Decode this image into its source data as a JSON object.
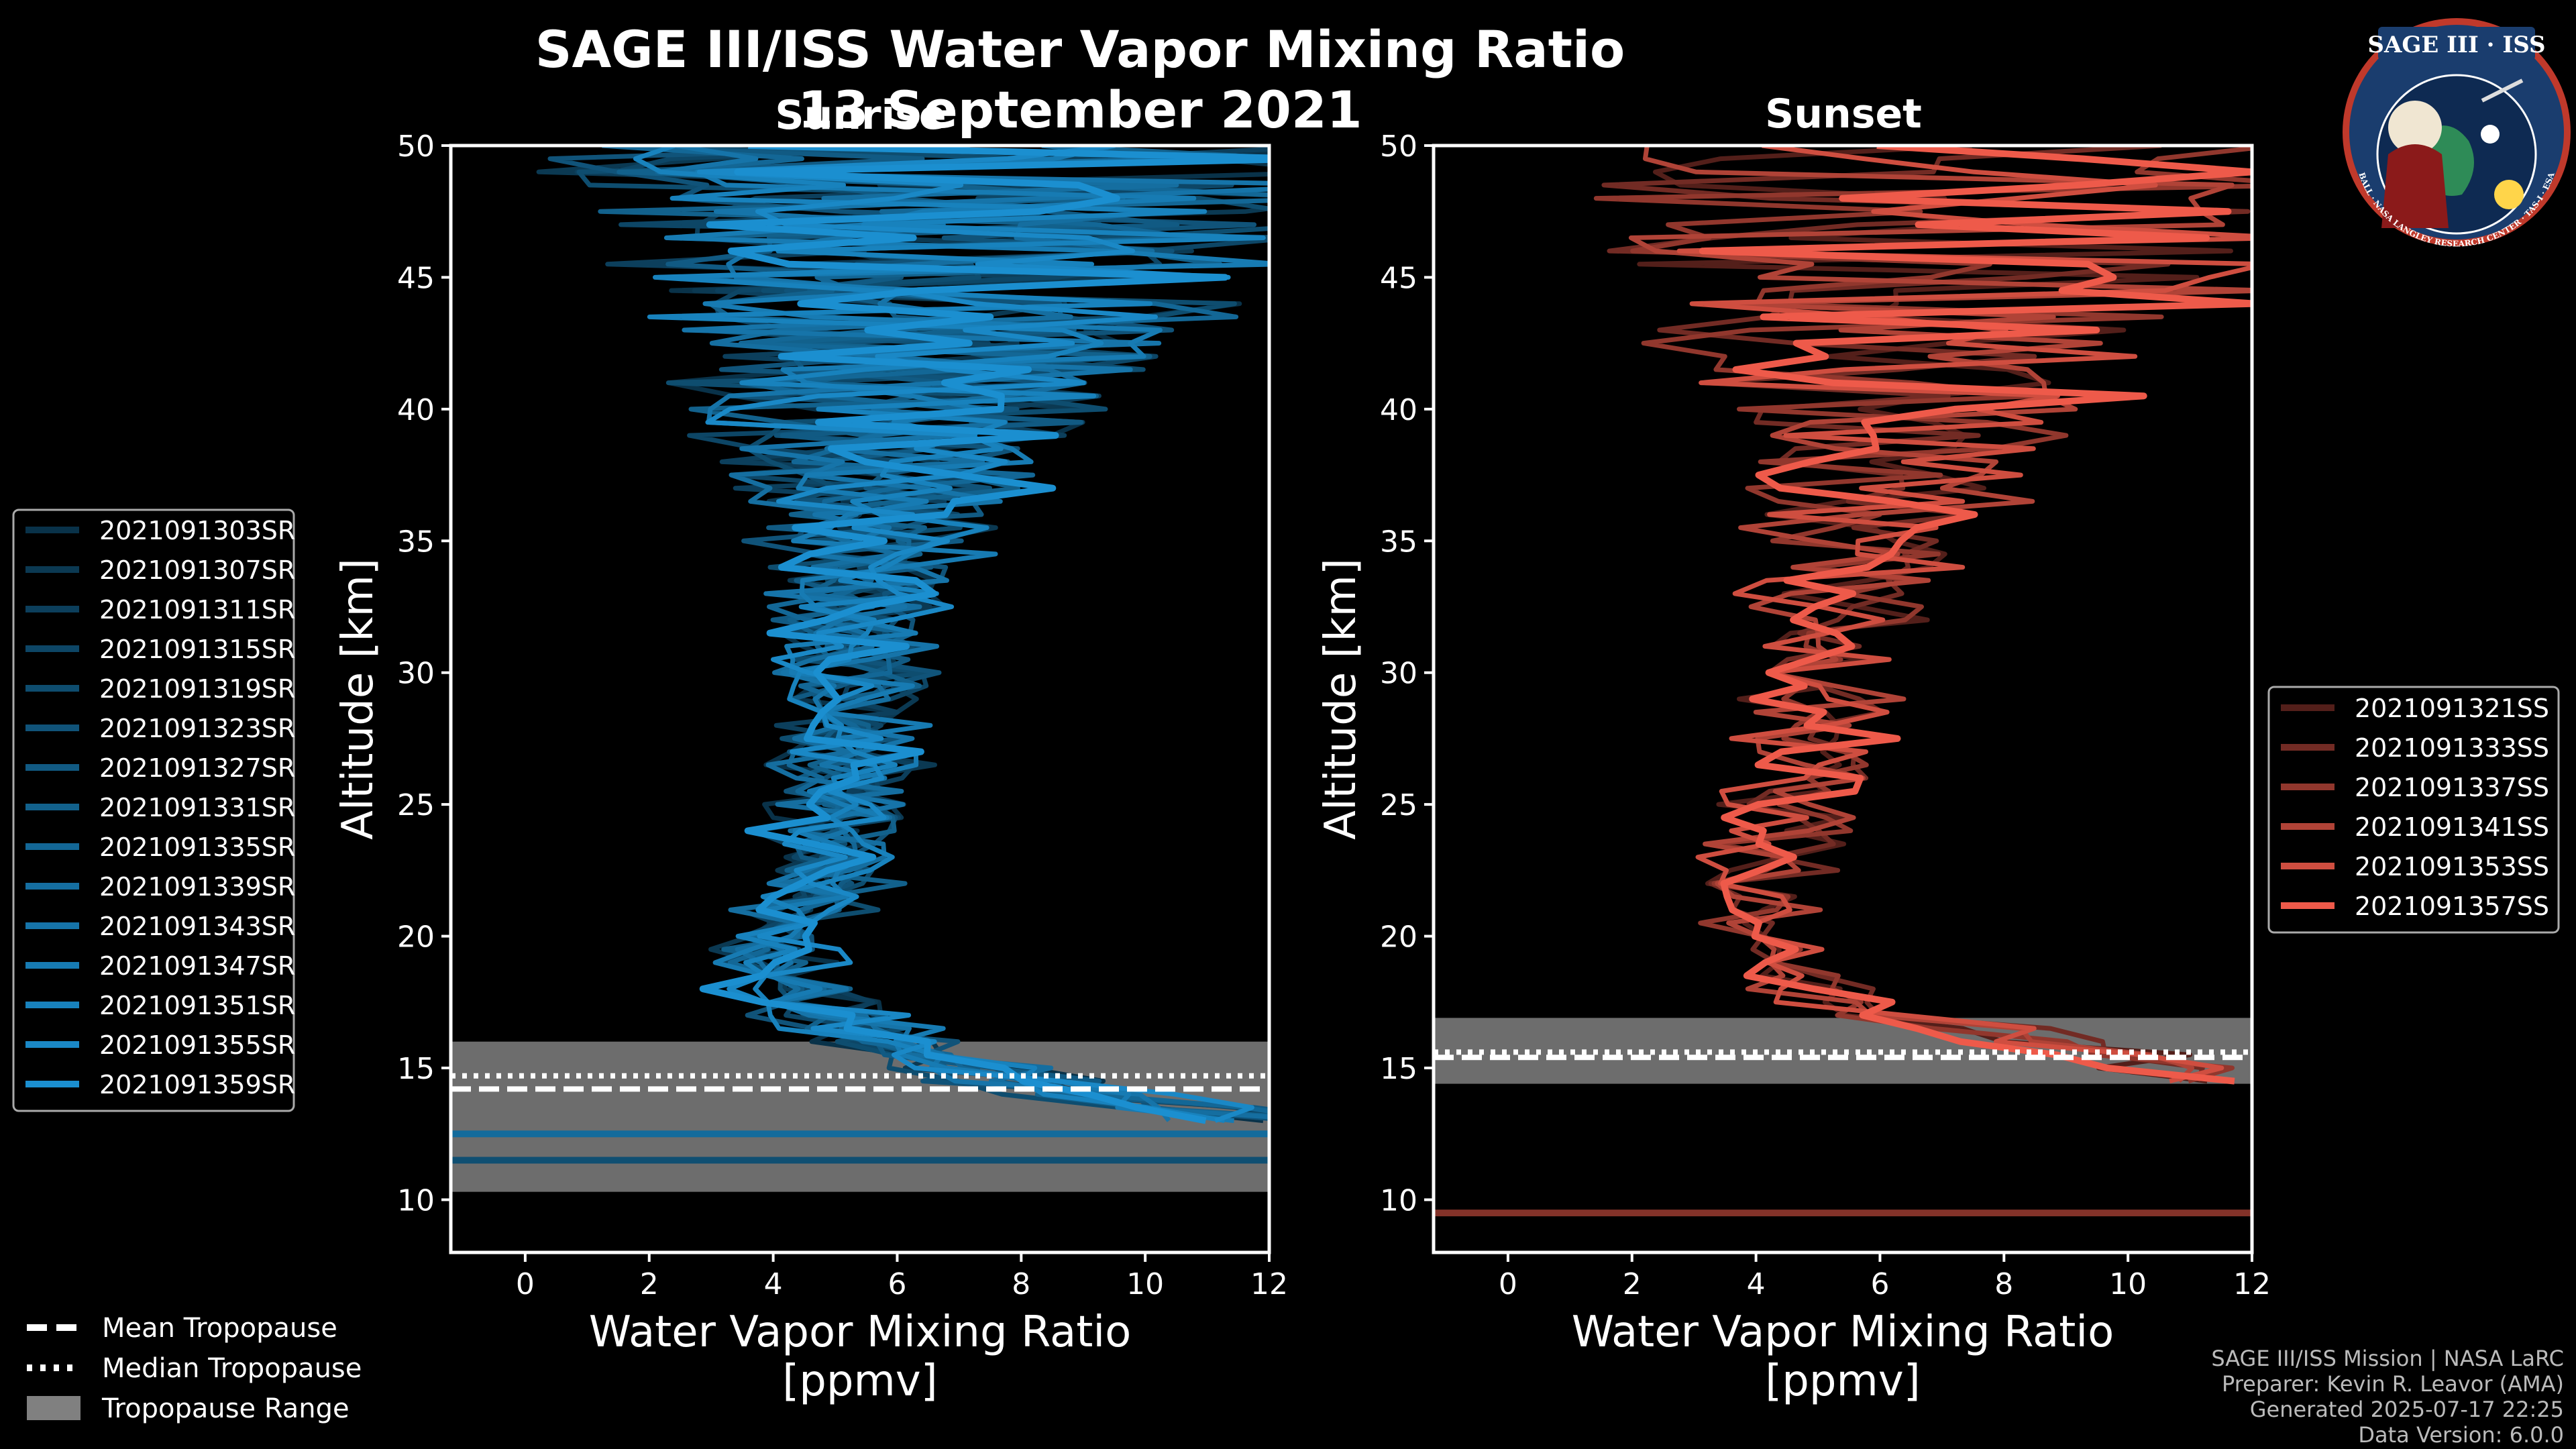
{
  "title": "SAGE III/ISS Water Vapor Mixing Ratio",
  "date": "13 September 2021",
  "sunrise_label": "Sunrise",
  "sunset_label": "Sunset",
  "footer": {
    "line1": "SAGE III/ISS Mission | NASA LaRC",
    "line2": "Preparer: Kevin R. Leavor (AMA)",
    "line3": "Generated 2025-07-17 22:25",
    "line4": "Data Version: 6.0.0"
  },
  "logo": {
    "title": "SAGE III · ISS",
    "ring": "BALL · NASA LANGLEY RESEARCH CENTER · TAS-I · ESA"
  },
  "colors": {
    "sunrise": "#1b8fd0",
    "sunset": "#ee5a4a",
    "tropopause_range": "#808080",
    "background": "#000000"
  },
  "tropopause_legend": {
    "mean": "Mean Tropopause",
    "median": "Median Tropopause",
    "range": "Tropopause Range"
  },
  "chart_data": [
    {
      "type": "line",
      "panel": "sunrise",
      "title": "Sunrise",
      "xlabel": "Water Vapor Mixing Ratio\n[ppmv]",
      "ylabel": "Altitude [km]",
      "xlim": [
        -1.2,
        12
      ],
      "ylim": [
        8,
        50
      ],
      "xticks": [
        0,
        2,
        4,
        6,
        8,
        10,
        12
      ],
      "yticks": [
        10,
        15,
        20,
        25,
        30,
        35,
        40,
        45,
        50
      ],
      "tropopause": {
        "mean": 14.2,
        "median": 14.7,
        "range": [
          10.3,
          16.0
        ]
      },
      "series_names": [
        "2021091303SR",
        "2021091307SR",
        "2021091311SR",
        "2021091315SR",
        "2021091319SR",
        "2021091323SR",
        "2021091327SR",
        "2021091331SR",
        "2021091335SR",
        "2021091339SR",
        "2021091343SR",
        "2021091347SR",
        "2021091351SR",
        "2021091355SR",
        "2021091359SR"
      ],
      "profile_mean": [
        [
          12.0,
          13
        ],
        [
          9.0,
          14
        ],
        [
          7.0,
          15
        ],
        [
          5.8,
          16
        ],
        [
          4.8,
          17
        ],
        [
          4.2,
          18
        ],
        [
          3.9,
          19
        ],
        [
          4.0,
          20
        ],
        [
          4.4,
          21
        ],
        [
          4.8,
          22
        ],
        [
          5.0,
          24
        ],
        [
          5.1,
          26
        ],
        [
          5.2,
          28
        ],
        [
          5.3,
          30
        ],
        [
          5.4,
          32
        ],
        [
          5.5,
          34
        ],
        [
          5.7,
          36
        ],
        [
          5.9,
          38
        ],
        [
          6.2,
          40
        ],
        [
          6.5,
          42
        ],
        [
          6.8,
          44
        ],
        [
          6.9,
          46
        ],
        [
          7.0,
          48
        ],
        [
          7.0,
          50
        ]
      ],
      "noise_profile": [
        [
          13,
          1.2
        ],
        [
          20,
          0.8
        ],
        [
          30,
          1.0
        ],
        [
          36,
          1.8
        ],
        [
          40,
          3.5
        ],
        [
          44,
          5.0
        ],
        [
          50,
          6.5
        ]
      ],
      "horizontal_segments_km": [
        11.5,
        12.5
      ]
    },
    {
      "type": "line",
      "panel": "sunset",
      "title": "Sunset",
      "xlabel": "Water Vapor Mixing Ratio\n[ppmv]",
      "ylabel": "Altitude [km]",
      "xlim": [
        -1.2,
        12
      ],
      "ylim": [
        8,
        50
      ],
      "xticks": [
        0,
        2,
        4,
        6,
        8,
        10,
        12
      ],
      "yticks": [
        10,
        15,
        20,
        25,
        30,
        35,
        40,
        45,
        50
      ],
      "tropopause": {
        "mean": 15.4,
        "median": 15.6,
        "range": [
          14.4,
          16.9
        ]
      },
      "series_names": [
        "2021091321SS",
        "2021091333SS",
        "2021091337SS",
        "2021091341SS",
        "2021091353SS",
        "2021091357SS"
      ],
      "profile_mean": [
        [
          12.0,
          14.5
        ],
        [
          10.0,
          15.3
        ],
        [
          8.0,
          16.3
        ],
        [
          6.0,
          17.2
        ],
        [
          4.8,
          18
        ],
        [
          4.2,
          19
        ],
        [
          3.9,
          20
        ],
        [
          4.0,
          22
        ],
        [
          4.4,
          24
        ],
        [
          4.8,
          26
        ],
        [
          5.0,
          28
        ],
        [
          5.1,
          30
        ],
        [
          5.3,
          32
        ],
        [
          5.5,
          34
        ],
        [
          5.8,
          36
        ],
        [
          6.2,
          38
        ],
        [
          6.5,
          40
        ],
        [
          6.8,
          42
        ],
        [
          7.0,
          44
        ],
        [
          7.2,
          46
        ],
        [
          7.5,
          48
        ],
        [
          7.5,
          50
        ]
      ],
      "noise_profile": [
        [
          14.5,
          1.2
        ],
        [
          20,
          0.8
        ],
        [
          30,
          1.0
        ],
        [
          36,
          1.8
        ],
        [
          40,
          3.5
        ],
        [
          44,
          4.8
        ],
        [
          50,
          6.0
        ]
      ],
      "horizontal_segments_km": [
        9.5
      ]
    }
  ]
}
